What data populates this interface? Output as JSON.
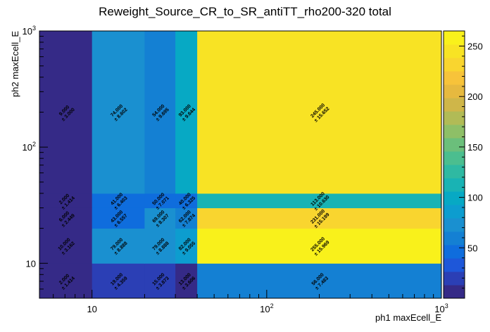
{
  "chart_data": {
    "type": "heatmap",
    "title": "Reweight_Source_CR_to_SR_antiTT_rho200-320 total",
    "xlabel": "ph1 maxEcell_E",
    "ylabel": "ph2 maxEcell_E",
    "x_scale": "log",
    "y_scale": "log",
    "xlim": [
      5,
      1000
    ],
    "ylim": [
      5,
      1000
    ],
    "x_ticks": [
      {
        "value": 10,
        "base": "10",
        "exp": ""
      },
      {
        "value": 100,
        "base": "10",
        "exp": "2"
      },
      {
        "value": 1000,
        "base": "10",
        "exp": "3"
      }
    ],
    "y_ticks": [
      {
        "value": 10,
        "base": "10",
        "exp": ""
      },
      {
        "value": 100,
        "base": "10",
        "exp": "2"
      },
      {
        "value": 1000,
        "base": "10",
        "exp": "3"
      }
    ],
    "x_edges": [
      5,
      10,
      20,
      30,
      40,
      1000
    ],
    "y_edges": [
      5,
      10,
      20,
      30,
      40,
      1000
    ],
    "z_range": [
      0,
      265
    ],
    "z_ticks": [
      50,
      100,
      150,
      200,
      250
    ],
    "palette": [
      "#352a87",
      "#2b3fb5",
      "#1e57d9",
      "#0f6ddd",
      "#1480d3",
      "#1a90d0",
      "#0d9dcf",
      "#07a9c4",
      "#19b3b4",
      "#2fb9a2",
      "#4bbe8f",
      "#6bbf7b",
      "#8ebf67",
      "#b1bb56",
      "#cfb649",
      "#e6b93f",
      "#f7c33a",
      "#f9d52f",
      "#f8e324",
      "#f9f11b"
    ],
    "cells": [
      {
        "x": 0,
        "y": 0,
        "value": 2.0,
        "label": "2.000",
        "error": "± 1.414"
      },
      {
        "x": 1,
        "y": 0,
        "value": 19.0,
        "label": "19.000",
        "error": "± 4.359"
      },
      {
        "x": 2,
        "y": 0,
        "value": 15.0,
        "label": "15.000",
        "error": "± 3.873"
      },
      {
        "x": 3,
        "y": 0,
        "value": 13.0,
        "label": "13.000",
        "error": "± 3.606"
      },
      {
        "x": 4,
        "y": 0,
        "value": 56.0,
        "label": "56.000",
        "error": "± 7.483"
      },
      {
        "x": 0,
        "y": 1,
        "value": 10.0,
        "label": "10.000",
        "error": "± 3.162"
      },
      {
        "x": 1,
        "y": 1,
        "value": 79.0,
        "label": "79.000",
        "error": "± 8.888"
      },
      {
        "x": 2,
        "y": 1,
        "value": 79.0,
        "label": "79.000",
        "error": "± 8.888"
      },
      {
        "x": 3,
        "y": 1,
        "value": 82.0,
        "label": "82.000",
        "error": "± 9.055"
      },
      {
        "x": 4,
        "y": 1,
        "value": 255.0,
        "label": "255.000",
        "error": "± 15.969"
      },
      {
        "x": 0,
        "y": 2,
        "value": 6.0,
        "label": "6.000",
        "error": "± 2.449"
      },
      {
        "x": 1,
        "y": 2,
        "value": 43.0,
        "label": "43.000",
        "error": "± 6.557"
      },
      {
        "x": 2,
        "y": 2,
        "value": 69.0,
        "label": "69.000",
        "error": "± 8.307"
      },
      {
        "x": 3,
        "y": 2,
        "value": 62.0,
        "label": "62.000",
        "error": "± 7.874"
      },
      {
        "x": 4,
        "y": 2,
        "value": 231.0,
        "label": "231.000",
        "error": "± 15.199"
      },
      {
        "x": 0,
        "y": 3,
        "value": 2.0,
        "label": "2.000",
        "error": "± 1.414"
      },
      {
        "x": 1,
        "y": 3,
        "value": 41.0,
        "label": "41.000",
        "error": "± 6.403"
      },
      {
        "x": 2,
        "y": 3,
        "value": 50.0,
        "label": "50.000",
        "error": "± 7.071"
      },
      {
        "x": 3,
        "y": 3,
        "value": 40.0,
        "label": "40.000",
        "error": "± 6.325"
      },
      {
        "x": 4,
        "y": 3,
        "value": 113.0,
        "label": "113.000",
        "error": "± 10.630"
      },
      {
        "x": 0,
        "y": 4,
        "value": 9.0,
        "label": "9.000",
        "error": "± 3.000"
      },
      {
        "x": 1,
        "y": 4,
        "value": 74.0,
        "label": "74.000",
        "error": "± 8.602"
      },
      {
        "x": 2,
        "y": 4,
        "value": 54.0,
        "label": "54.000",
        "error": "± 9.695"
      },
      {
        "x": 3,
        "y": 4,
        "value": 93.0,
        "label": "93.000",
        "error": "± 9.644"
      },
      {
        "x": 4,
        "y": 4,
        "value": 245.0,
        "label": "245.000",
        "error": "± 15.652"
      }
    ]
  }
}
